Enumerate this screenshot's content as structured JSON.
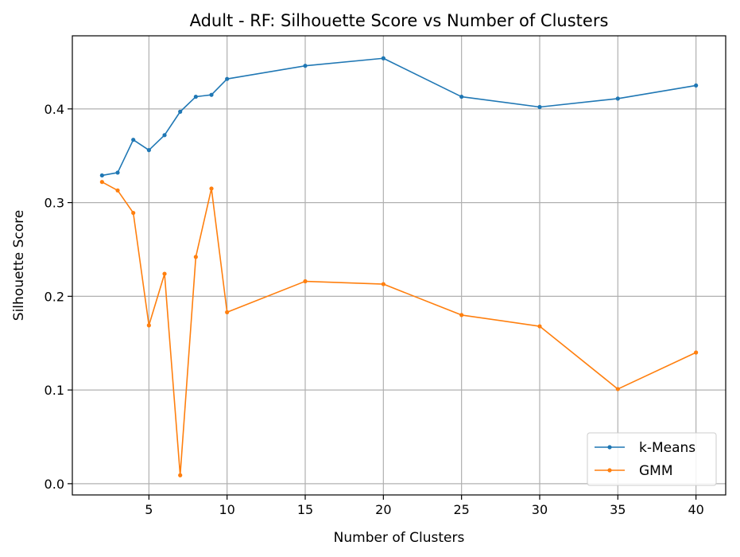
{
  "chart_data": {
    "type": "line",
    "title": "Adult - RF: Silhouette Score vs Number of Clusters",
    "xlabel": "Number of Clusters",
    "ylabel": "Silhouette Score",
    "xlim": [
      0.1,
      41.9
    ],
    "ylim": [
      -0.012,
      0.478
    ],
    "xticks": [
      5,
      10,
      15,
      20,
      25,
      30,
      35,
      40
    ],
    "yticks": [
      0.0,
      0.1,
      0.2,
      0.3,
      0.4
    ],
    "ytick_labels": [
      "0.0",
      "0.1",
      "0.2",
      "0.3",
      "0.4"
    ],
    "grid": true,
    "legend_position": "lower-right",
    "x": [
      2,
      3,
      4,
      5,
      6,
      7,
      8,
      9,
      10,
      15,
      20,
      25,
      30,
      35,
      40
    ],
    "series": [
      {
        "name": "k-Means",
        "color": "#1f77b4",
        "values": [
          0.329,
          0.332,
          0.367,
          0.356,
          0.372,
          0.397,
          0.413,
          0.415,
          0.432,
          0.446,
          0.454,
          0.413,
          0.402,
          0.411,
          0.425
        ]
      },
      {
        "name": "GMM",
        "color": "#ff7f0e",
        "values": [
          0.322,
          0.313,
          0.289,
          0.169,
          0.224,
          0.009,
          0.242,
          0.315,
          0.183,
          0.216,
          0.213,
          0.18,
          0.168,
          0.101,
          0.14
        ]
      }
    ]
  }
}
